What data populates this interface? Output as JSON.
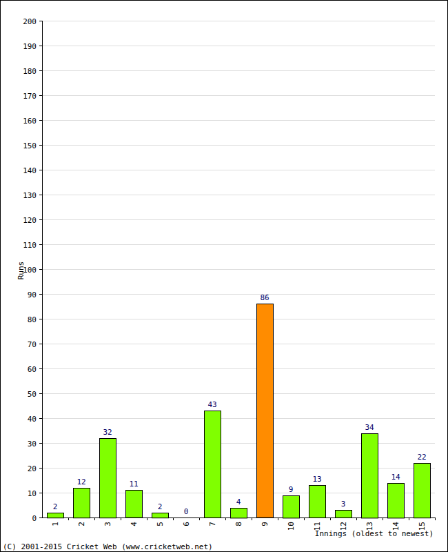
{
  "chart_data": {
    "type": "bar",
    "x_label": "Innings (oldest to newest)",
    "y_label": "Runs",
    "annotations": [
      "(C) 2001-2015 Cricket Web (www.cricketweb.net)"
    ],
    "categories": [
      "1",
      "2",
      "3",
      "4",
      "5",
      "6",
      "7",
      "8",
      "9",
      "10",
      "11",
      "12",
      "13",
      "14",
      "15"
    ],
    "values": [
      2,
      12,
      32,
      11,
      2,
      0,
      43,
      4,
      86,
      9,
      13,
      3,
      34,
      14,
      22
    ],
    "colors": [
      "#80ff00",
      "#80ff00",
      "#80ff00",
      "#80ff00",
      "#80ff00",
      "#80ff00",
      "#80ff00",
      "#80ff00",
      "#ff8c00",
      "#80ff00",
      "#80ff00",
      "#80ff00",
      "#80ff00",
      "#80ff00",
      "#80ff00"
    ],
    "ylim": [
      0,
      200
    ],
    "yticks": [
      0,
      10,
      20,
      30,
      40,
      50,
      60,
      70,
      80,
      90,
      100,
      110,
      120,
      130,
      140,
      150,
      160,
      170,
      180,
      190,
      200
    ],
    "grid": true,
    "data_labels": true
  }
}
